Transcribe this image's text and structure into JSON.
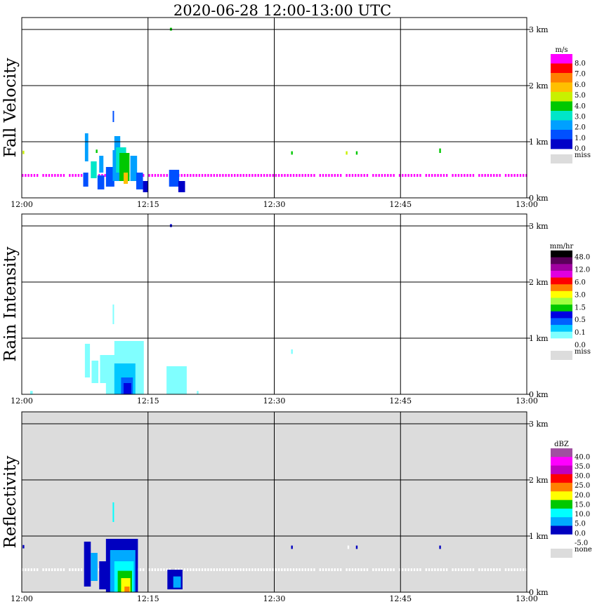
{
  "title": "2020-06-28   12:00-13:00 UTC",
  "chart_data": [
    {
      "type": "heatmap",
      "panel": "Fall Velocity",
      "xlabel": "",
      "ylabel": "Fall Velocity",
      "x_ticks": [
        "12:00",
        "12:15",
        "12:30",
        "12:45",
        "13:00"
      ],
      "y_ticks": [
        "0 km",
        "1 km",
        "2 km",
        "3 km"
      ],
      "ylim_km": [
        0,
        3.2
      ],
      "grid": true,
      "colorbar": {
        "unit": "m/s",
        "labels": [
          "8.0",
          "7.0",
          "6.0",
          "5.0",
          "4.0",
          "3.0",
          "2.0",
          "1.0",
          "0.0"
        ],
        "colors": [
          "#ff00ff",
          "#ff0000",
          "#ff7f00",
          "#ffbf00",
          "#c8f000",
          "#00c800",
          "#00e6c8",
          "#00a0ff",
          "#0050ff",
          "#0000c8"
        ],
        "miss_label": "miss",
        "miss_color": "#dcdcdc"
      },
      "background_color": "#ffffff",
      "band": {
        "alt_km": 0.4,
        "color": "#ff00ff",
        "from_min": 0,
        "to_min": 60,
        "gap_from_min": 7,
        "gap_to_min": 9
      },
      "cells": [
        {
          "min": 7.5,
          "alt": 0.65,
          "w": 0.4,
          "h": 0.5,
          "color": "#00a0ff"
        },
        {
          "min": 7.3,
          "alt": 0.2,
          "w": 0.6,
          "h": 0.25,
          "color": "#0050ff"
        },
        {
          "min": 8.2,
          "alt": 0.35,
          "w": 0.7,
          "h": 0.3,
          "color": "#00e6c8"
        },
        {
          "min": 9.0,
          "alt": 0.15,
          "w": 0.8,
          "h": 0.25,
          "color": "#0050ff"
        },
        {
          "min": 9.2,
          "alt": 0.45,
          "w": 0.5,
          "h": 0.3,
          "color": "#00a0ff"
        },
        {
          "min": 10.0,
          "alt": 0.2,
          "w": 1.0,
          "h": 0.35,
          "color": "#0050ff"
        },
        {
          "min": 10.8,
          "alt": 0.3,
          "w": 1.0,
          "h": 0.55,
          "color": "#00a0ff"
        },
        {
          "min": 11.0,
          "alt": 0.75,
          "w": 0.7,
          "h": 0.35,
          "color": "#00a0ff"
        },
        {
          "min": 11.2,
          "alt": 0.45,
          "w": 1.2,
          "h": 0.45,
          "color": "#00e6c8"
        },
        {
          "min": 11.6,
          "alt": 0.3,
          "w": 1.2,
          "h": 0.5,
          "color": "#00c800"
        },
        {
          "min": 12.1,
          "alt": 0.25,
          "w": 0.5,
          "h": 0.2,
          "color": "#ffbf00"
        },
        {
          "min": 12.9,
          "alt": 0.3,
          "w": 0.8,
          "h": 0.45,
          "color": "#00a0ff"
        },
        {
          "min": 13.6,
          "alt": 0.15,
          "w": 0.8,
          "h": 0.3,
          "color": "#0050ff"
        },
        {
          "min": 14.4,
          "alt": 0.1,
          "w": 0.6,
          "h": 0.2,
          "color": "#0000c8"
        },
        {
          "min": 17.5,
          "alt": 0.2,
          "w": 1.2,
          "h": 0.3,
          "color": "#0050ff"
        },
        {
          "min": 18.6,
          "alt": 0.1,
          "w": 0.8,
          "h": 0.2,
          "color": "#0000c8"
        },
        {
          "min": 10.8,
          "alt": 1.35,
          "w": 0.15,
          "h": 0.2,
          "color": "#0050ff"
        },
        {
          "min": 0.1,
          "alt": 0.78,
          "w": 0.2,
          "h": 0.06,
          "color": "#c8f000"
        },
        {
          "min": 8.8,
          "alt": 0.8,
          "w": 0.2,
          "h": 0.06,
          "color": "#00c800"
        },
        {
          "min": 17.6,
          "alt": 2.98,
          "w": 0.25,
          "h": 0.05,
          "color": "#00c800"
        },
        {
          "min": 32.0,
          "alt": 0.77,
          "w": 0.2,
          "h": 0.06,
          "color": "#00c800"
        },
        {
          "min": 38.5,
          "alt": 0.77,
          "w": 0.2,
          "h": 0.06,
          "color": "#c8f000"
        },
        {
          "min": 39.7,
          "alt": 0.77,
          "w": 0.2,
          "h": 0.06,
          "color": "#00c800"
        },
        {
          "min": 49.6,
          "alt": 0.8,
          "w": 0.2,
          "h": 0.08,
          "color": "#00c800"
        }
      ]
    },
    {
      "type": "heatmap",
      "panel": "Rain Intensity",
      "xlabel": "",
      "ylabel": "Rain Intensity",
      "x_ticks": [
        "12:00",
        "12:15",
        "12:30",
        "12:45",
        "13:00"
      ],
      "y_ticks": [
        "0 km",
        "1 km",
        "2 km",
        "3 km"
      ],
      "ylim_km": [
        0,
        3.2
      ],
      "grid": true,
      "colorbar": {
        "unit": "mm/hr",
        "labels": [
          "48.0",
          "12.0",
          "6.0",
          "3.0",
          "1.5",
          "0.5",
          "0.1",
          "0.0"
        ],
        "colors": [
          "#000000",
          "#5a005a",
          "#a000a0",
          "#e000e0",
          "#ff0000",
          "#ff8000",
          "#ffff00",
          "#a0ff40",
          "#00c800",
          "#0000e0",
          "#0060ff",
          "#00c8ff",
          "#80ffff",
          "#ffffff"
        ],
        "miss_label": "miss",
        "miss_color": "#dcdcdc"
      },
      "background_color": "#ffffff",
      "cells": [
        {
          "min": 7.5,
          "alt": 0.3,
          "w": 0.6,
          "h": 0.6,
          "color": "#80ffff"
        },
        {
          "min": 8.3,
          "alt": 0.2,
          "w": 0.8,
          "h": 0.4,
          "color": "#80ffff"
        },
        {
          "min": 9.3,
          "alt": 0.2,
          "w": 0.8,
          "h": 0.5,
          "color": "#80ffff"
        },
        {
          "min": 10.0,
          "alt": 0.0,
          "w": 1.6,
          "h": 0.7,
          "color": "#80ffff"
        },
        {
          "min": 11.0,
          "alt": 0.0,
          "w": 3.5,
          "h": 0.95,
          "color": "#80ffff"
        },
        {
          "min": 11.0,
          "alt": 0.0,
          "w": 2.5,
          "h": 0.55,
          "color": "#00c8ff"
        },
        {
          "min": 11.8,
          "alt": 0.0,
          "w": 1.4,
          "h": 0.3,
          "color": "#0060ff"
        },
        {
          "min": 12.1,
          "alt": 0.0,
          "w": 0.9,
          "h": 0.2,
          "color": "#0000e0"
        },
        {
          "min": 17.2,
          "alt": 0.0,
          "w": 2.4,
          "h": 0.5,
          "color": "#80ffff"
        },
        {
          "min": 20.8,
          "alt": 0.0,
          "w": 0.2,
          "h": 0.06,
          "color": "#80ffff"
        },
        {
          "min": 1.0,
          "alt": 0.0,
          "w": 0.3,
          "h": 0.06,
          "color": "#80ffff"
        },
        {
          "min": 10.8,
          "alt": 1.25,
          "w": 0.15,
          "h": 0.35,
          "color": "#80ffff"
        },
        {
          "min": 17.6,
          "alt": 2.98,
          "w": 0.25,
          "h": 0.05,
          "color": "#0000e0"
        },
        {
          "min": 32.0,
          "alt": 0.72,
          "w": 0.2,
          "h": 0.08,
          "color": "#80ffff"
        }
      ]
    },
    {
      "type": "heatmap",
      "panel": "Reflectivity",
      "xlabel": "",
      "ylabel": "Reflectivity",
      "x_ticks": [
        "12:00",
        "12:15",
        "12:30",
        "12:45",
        "13:00"
      ],
      "y_ticks": [
        "0 km",
        "1 km",
        "2 km",
        "3 km"
      ],
      "ylim_km": [
        0,
        3.2
      ],
      "grid": true,
      "colorbar": {
        "unit": "dBZ",
        "labels": [
          "40.0",
          "35.0",
          "30.0",
          "25.0",
          "20.0",
          "15.0",
          "10.0",
          "5.0",
          "0.0",
          "-5.0"
        ],
        "colors": [
          "#a050a0",
          "#ff00ff",
          "#c000c0",
          "#ff0000",
          "#ff8000",
          "#ffff00",
          "#00c800",
          "#00ffff",
          "#00aaff",
          "#0000c0",
          "#ffffff"
        ],
        "miss_label": "none",
        "miss_color": "#dcdcdc"
      },
      "background_color": "#dcdcdc",
      "band": {
        "alt_km": 0.4,
        "color": "#ffffff",
        "from_min": 0,
        "to_min": 60,
        "gap_from_min": 7,
        "gap_to_min": 9
      },
      "cells": [
        {
          "min": 7.4,
          "alt": 0.1,
          "w": 0.8,
          "h": 0.8,
          "color": "#0000c0"
        },
        {
          "min": 8.2,
          "alt": 0.2,
          "w": 0.8,
          "h": 0.5,
          "color": "#00aaff"
        },
        {
          "min": 9.2,
          "alt": 0.05,
          "w": 1.0,
          "h": 0.5,
          "color": "#0000c0"
        },
        {
          "min": 10.0,
          "alt": 0.0,
          "w": 3.8,
          "h": 0.95,
          "color": "#0000c0"
        },
        {
          "min": 10.5,
          "alt": 0.0,
          "w": 3.0,
          "h": 0.75,
          "color": "#00aaff"
        },
        {
          "min": 11.0,
          "alt": 0.0,
          "w": 2.3,
          "h": 0.55,
          "color": "#00ffff"
        },
        {
          "min": 11.4,
          "alt": 0.0,
          "w": 1.7,
          "h": 0.38,
          "color": "#00c800"
        },
        {
          "min": 11.8,
          "alt": 0.0,
          "w": 1.1,
          "h": 0.25,
          "color": "#ffff00"
        },
        {
          "min": 12.2,
          "alt": 0.0,
          "w": 0.6,
          "h": 0.1,
          "color": "#ff8000"
        },
        {
          "min": 17.3,
          "alt": 0.05,
          "w": 1.8,
          "h": 0.35,
          "color": "#0000c0"
        },
        {
          "min": 18.0,
          "alt": 0.08,
          "w": 0.9,
          "h": 0.2,
          "color": "#00aaff"
        },
        {
          "min": 10.8,
          "alt": 1.25,
          "w": 0.15,
          "h": 0.35,
          "color": "#00ffff"
        },
        {
          "min": 0.1,
          "alt": 0.78,
          "w": 0.2,
          "h": 0.06,
          "color": "#0000c0"
        },
        {
          "min": 32.0,
          "alt": 0.77,
          "w": 0.2,
          "h": 0.06,
          "color": "#0000c0"
        },
        {
          "min": 38.7,
          "alt": 0.77,
          "w": 0.2,
          "h": 0.06,
          "color": "#ffffff"
        },
        {
          "min": 39.7,
          "alt": 0.77,
          "w": 0.2,
          "h": 0.06,
          "color": "#0000c0"
        },
        {
          "min": 49.6,
          "alt": 0.77,
          "w": 0.2,
          "h": 0.06,
          "color": "#0000c0"
        }
      ]
    }
  ]
}
